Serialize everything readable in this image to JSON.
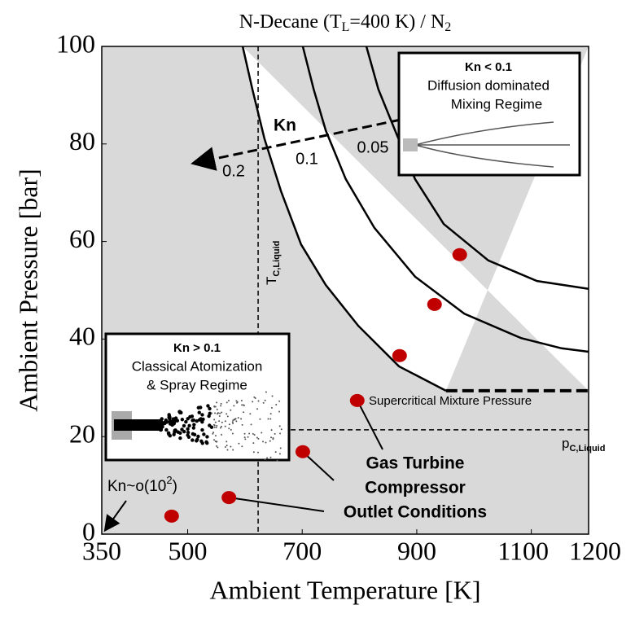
{
  "chart_data": {
    "type": "scatter",
    "title": {
      "parts": [
        "N-Decane (T",
        "L",
        "=400 K) / N",
        "2"
      ],
      "subscript": [
        false,
        true,
        false,
        true
      ]
    },
    "x_label": "Ambient Temperature [K]",
    "y_label": "Ambient Pressure [bar]",
    "xlim": [
      350,
      1200
    ],
    "ylim": [
      0,
      100
    ],
    "xticks": [
      350,
      500,
      700,
      900,
      1100,
      1200
    ],
    "yticks": [
      0,
      20,
      40,
      60,
      80,
      100
    ],
    "points": {
      "color": "#c00000",
      "x": [
        472,
        572,
        701,
        796,
        870,
        931,
        975
      ],
      "y": [
        3.7,
        7.5,
        16.9,
        27.4,
        36.6,
        47.1,
        57.3
      ]
    },
    "curves": [
      {
        "label": "0.2",
        "x": [
          596,
          613,
          634,
          663,
          698,
          741,
          798,
          869,
          951
        ],
        "y": [
          100,
          91.2,
          81.1,
          70.3,
          59.4,
          51.1,
          42.7,
          34.4,
          29.4
        ]
      },
      {
        "label": "0.1",
        "x": [
          701,
          720,
          741,
          776,
          826,
          897,
          983,
          1082,
          1153,
          1200
        ],
        "y": [
          100,
          91.2,
          82.8,
          72.8,
          62.8,
          52.8,
          45.2,
          40.2,
          38.1,
          37.4
        ]
      },
      {
        "label": "0.05",
        "x": [
          812,
          833,
          862,
          897,
          947,
          1025,
          1110,
          1200
        ],
        "y": [
          100,
          91.2,
          82.8,
          72.8,
          63.6,
          56.1,
          51.9,
          50.3
        ]
      }
    ],
    "kn_label": "Kn",
    "critical_temperature": {
      "symbol": "T",
      "subscript": "C,Liquid",
      "x": 623
    },
    "critical_pressure": {
      "symbol": "p",
      "subscript": "C,Liquid",
      "y": 21.4
    },
    "mixture_pressure": {
      "label": "Supercritical Mixture Pressure",
      "y": 29.4
    },
    "operating_label": [
      "Gas Turbine",
      "Compressor",
      "Outlet Conditions"
    ],
    "kn_limit": {
      "parts": [
        "Kn~o(10",
        "2",
        ")"
      ]
    },
    "inset_diffusion": [
      "Kn < 0.1",
      "Diffusion dominated",
      "Mixing Regime"
    ],
    "inset_spray": [
      "Kn > 0.1",
      "Classical Atomization",
      "& Spray Regime"
    ]
  }
}
